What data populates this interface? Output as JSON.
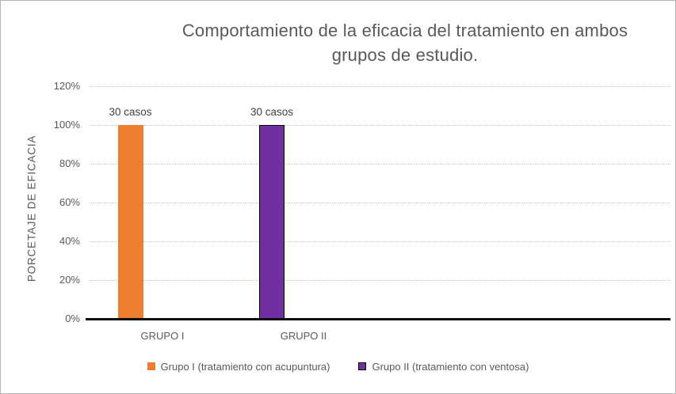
{
  "chart_data": {
    "type": "bar",
    "title": "Comportamiento de la eficacia del tratamiento en ambos grupos de estudio.",
    "title_lines": [
      "Comportamiento de la eficacia del tratamiento en ambos",
      "grupos de estudio."
    ],
    "xlabel": "",
    "ylabel": "PORCETAJE DE EFICACIA",
    "ylim": [
      0,
      120
    ],
    "yticks": [
      "0%",
      "20%",
      "40%",
      "60%",
      "80%",
      "100%",
      "120%"
    ],
    "grid": "horizontal-dotted",
    "legend_position": "bottom",
    "categories": [
      "GRUPO I",
      "GRUPO II"
    ],
    "series": [
      {
        "name": "Grupo I (tratamiento con acupuntura)",
        "color": "#ED7D31",
        "border": null,
        "values": [
          100,
          null
        ]
      },
      {
        "name": "Grupo II (tratamiento con ventosa)",
        "color": "#7030A0",
        "border": "#000000",
        "values": [
          null,
          100
        ]
      }
    ],
    "data_labels": [
      "30 casos",
      "30 casos"
    ],
    "colors": {
      "title_text": "#595959",
      "axis_text": "#595959",
      "data_label_text": "#3f3f3f",
      "gridline": "#c6c6c6",
      "axis_line": "#0d0d0d"
    }
  }
}
